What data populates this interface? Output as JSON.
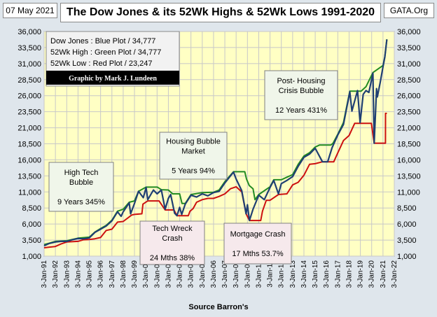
{
  "header": {
    "date": "07 May 2021",
    "title": "The Dow Jones & its 52Wk Highs & 52Wk Lows 1991-2020",
    "site": "GATA.Org"
  },
  "legend": {
    "lines": [
      "Dow Jones : Blue Plot  / 34,777",
      "52Wk High : Green Plot  / 34,777",
      "52Wk Low : Red Plot / 23,247"
    ],
    "credit": "Graphic by Mark J. Lundeen"
  },
  "annotations": [
    {
      "lines": [
        "High Tech",
        "Bubble",
        "",
        "9 Years  345%"
      ],
      "fill": "#f0f6ea"
    },
    {
      "lines": [
        "Tech Wreck",
        "Crash",
        "",
        "24 Mths  38%"
      ],
      "fill": "#f6e9ec"
    },
    {
      "lines": [
        "Housing Bubble",
        "Market",
        "",
        "5 Years  94%"
      ],
      "fill": "#f0f6ea"
    },
    {
      "lines": [
        "Mortgage Crash",
        "",
        "17 Mths  53.7%"
      ],
      "fill": "#f6e9ec"
    },
    {
      "lines": [
        "Post- Housing",
        "Crisis Bubble",
        "",
        "12 Years  431%"
      ],
      "fill": "#f0f6ea"
    }
  ],
  "source": "Source Barron's",
  "colors": {
    "plot_bg": "#ffffc4",
    "grid": "#c8c8c8",
    "dow": "#1f3f73",
    "high": "#228b22",
    "low": "#cc1010"
  },
  "chart_data": {
    "type": "line",
    "title": "The Dow Jones & its 52Wk Highs & 52Wk Lows 1991-2020",
    "xlabel": "Source Barron's",
    "ylabel": "",
    "ylim": [
      1000,
      36000
    ],
    "xlim": [
      "1991-01-03",
      "2022-01-03"
    ],
    "yticks": [
      1000,
      3500,
      6000,
      8500,
      11000,
      13500,
      16000,
      18500,
      21000,
      23500,
      26000,
      28500,
      31000,
      33500,
      36000
    ],
    "ytick_labels": [
      "1,000",
      "3,500",
      "6,000",
      "8,500",
      "11,000",
      "13,500",
      "16,000",
      "18,500",
      "21,000",
      "23,500",
      "26,000",
      "28,500",
      "31,000",
      "33,500",
      "36,000"
    ],
    "xtick_labels": [
      "3-Jan-91",
      "3-Jan-92",
      "3-Jan-93",
      "3-Jan-94",
      "3-Jan-95",
      "3-Jan-96",
      "3-Jan-97",
      "3-Jan-98",
      "3-Jan-99",
      "3-Jan-00",
      "3-Jan-01",
      "3-Jan-02",
      "3-Jan-03",
      "3-Jan-04",
      "3-Jan-05",
      "3-Jan-06",
      "3-Jan-07",
      "3-Jan-08",
      "3-Jan-09",
      "3-Jan-10",
      "3-Jan-11",
      "3-Jan-12",
      "3-Jan-13",
      "3-Jan-14",
      "3-Jan-15",
      "3-Jan-16",
      "3-Jan-17",
      "3-Jan-18",
      "3-Jan-19",
      "3-Jan-20",
      "3-Jan-21",
      "3-Jan-22"
    ],
    "grid": true,
    "legend": "top-left",
    "series": [
      {
        "name": "Dow Jones",
        "color": "#1f3f73",
        "points": [
          [
            "1991-01-03",
            2600
          ],
          [
            "1991-06-03",
            2950
          ],
          [
            "1992-01-03",
            3200
          ],
          [
            "1992-07-03",
            3300
          ],
          [
            "1993-01-03",
            3300
          ],
          [
            "1993-07-03",
            3550
          ],
          [
            "1994-01-03",
            3750
          ],
          [
            "1994-07-03",
            3700
          ],
          [
            "1995-01-03",
            3850
          ],
          [
            "1995-07-03",
            4700
          ],
          [
            "1996-01-03",
            5200
          ],
          [
            "1996-07-03",
            5700
          ],
          [
            "1997-01-03",
            6500
          ],
          [
            "1997-07-03",
            7900
          ],
          [
            "1997-10-27",
            7200
          ],
          [
            "1998-01-03",
            7900
          ],
          [
            "1998-07-17",
            9300
          ],
          [
            "1998-08-31",
            7600
          ],
          [
            "1999-01-03",
            9200
          ],
          [
            "1999-05-13",
            11100
          ],
          [
            "1999-10-15",
            10100
          ],
          [
            "2000-01-14",
            11700
          ],
          [
            "2000-03-07",
            9800
          ],
          [
            "2000-09-06",
            11300
          ],
          [
            "2001-01-03",
            10700
          ],
          [
            "2001-05-21",
            11300
          ],
          [
            "2001-09-21",
            8300
          ],
          [
            "2002-01-03",
            10000
          ],
          [
            "2002-03-19",
            10600
          ],
          [
            "2002-07-23",
            7700
          ],
          [
            "2002-10-09",
            7300
          ],
          [
            "2003-01-03",
            8600
          ],
          [
            "2003-03-11",
            7500
          ],
          [
            "2003-07-03",
            9100
          ],
          [
            "2004-01-03",
            10500
          ],
          [
            "2004-07-03",
            10200
          ],
          [
            "2005-01-03",
            10700
          ],
          [
            "2005-07-03",
            10400
          ],
          [
            "2006-01-03",
            10900
          ],
          [
            "2006-07-03",
            11100
          ],
          [
            "2007-01-03",
            12400
          ],
          [
            "2007-10-09",
            14100
          ],
          [
            "2008-01-03",
            13000
          ],
          [
            "2008-07-03",
            11200
          ],
          [
            "2008-11-20",
            7600
          ],
          [
            "2009-01-03",
            9000
          ],
          [
            "2009-03-09",
            6550
          ],
          [
            "2009-07-03",
            8300
          ],
          [
            "2010-01-03",
            10500
          ],
          [
            "2010-07-03",
            9800
          ],
          [
            "2011-01-03",
            11700
          ],
          [
            "2011-05-03",
            12800
          ],
          [
            "2011-10-03",
            10700
          ],
          [
            "2012-01-03",
            12300
          ],
          [
            "2012-07-03",
            12800
          ],
          [
            "2013-01-03",
            13400
          ],
          [
            "2013-07-03",
            15000
          ],
          [
            "2014-01-03",
            16400
          ],
          [
            "2014-07-03",
            16900
          ],
          [
            "2015-01-03",
            17800
          ],
          [
            "2015-08-25",
            15700
          ],
          [
            "2016-02-11",
            15700
          ],
          [
            "2016-07-03",
            17900
          ],
          [
            "2017-01-03",
            19900
          ],
          [
            "2017-07-03",
            21500
          ],
          [
            "2018-01-26",
            26600
          ],
          [
            "2018-04-03",
            23600
          ],
          [
            "2018-10-03",
            26800
          ],
          [
            "2018-12-24",
            21800
          ],
          [
            "2019-04-03",
            26200
          ],
          [
            "2019-07-03",
            26800
          ],
          [
            "2019-10-03",
            26500
          ],
          [
            "2020-02-12",
            29500
          ],
          [
            "2020-03-23",
            18600
          ],
          [
            "2020-06-08",
            27100
          ],
          [
            "2020-07-03",
            25800
          ],
          [
            "2020-10-03",
            28000
          ],
          [
            "2021-01-03",
            30500
          ],
          [
            "2021-03-03",
            32000
          ],
          [
            "2021-05-07",
            34777
          ]
        ]
      },
      {
        "name": "52Wk High",
        "color": "#228b22",
        "points": [
          [
            "1991-01-03",
            2800
          ],
          [
            "1991-06-03",
            3000
          ],
          [
            "1992-01-03",
            3300
          ],
          [
            "1993-01-03",
            3400
          ],
          [
            "1993-07-03",
            3600
          ],
          [
            "1994-01-03",
            3800
          ],
          [
            "1995-01-03",
            3950
          ],
          [
            "1995-07-03",
            4750
          ],
          [
            "1996-01-03",
            5300
          ],
          [
            "1996-07-03",
            5800
          ],
          [
            "1997-01-03",
            6600
          ],
          [
            "1997-07-03",
            8000
          ],
          [
            "1998-01-03",
            8300
          ],
          [
            "1998-07-17",
            9400
          ],
          [
            "1999-01-03",
            9600
          ],
          [
            "1999-05-13",
            11100
          ],
          [
            "2000-01-14",
            11750
          ],
          [
            "2001-01-14",
            11750
          ],
          [
            "2001-05-21",
            11350
          ],
          [
            "2002-01-03",
            11300
          ],
          [
            "2002-05-21",
            10700
          ],
          [
            "2003-01-03",
            10700
          ],
          [
            "2003-03-19",
            9200
          ],
          [
            "2003-07-03",
            9200
          ],
          [
            "2004-01-03",
            10600
          ],
          [
            "2004-07-03",
            10750
          ],
          [
            "2005-01-03",
            10900
          ],
          [
            "2006-01-03",
            10950
          ],
          [
            "2006-07-03",
            11300
          ],
          [
            "2007-01-03",
            12600
          ],
          [
            "2007-10-09",
            14150
          ],
          [
            "2008-10-09",
            14150
          ],
          [
            "2008-12-03",
            13000
          ],
          [
            "2009-03-03",
            12000
          ],
          [
            "2009-07-03",
            11500
          ],
          [
            "2009-09-03",
            9800
          ],
          [
            "2010-01-03",
            10600
          ],
          [
            "2011-01-03",
            11800
          ],
          [
            "2011-05-03",
            12900
          ],
          [
            "2012-01-03",
            12900
          ],
          [
            "2012-07-03",
            13300
          ],
          [
            "2013-01-03",
            13700
          ],
          [
            "2013-07-03",
            15300
          ],
          [
            "2014-01-03",
            16600
          ],
          [
            "2014-07-03",
            17100
          ],
          [
            "2015-01-03",
            18000
          ],
          [
            "2015-05-19",
            18300
          ],
          [
            "2016-05-19",
            18300
          ],
          [
            "2016-08-03",
            18600
          ],
          [
            "2017-01-03",
            20000
          ],
          [
            "2017-07-03",
            21800
          ],
          [
            "2018-01-26",
            26700
          ],
          [
            "2019-01-26",
            26700
          ],
          [
            "2019-07-03",
            27400
          ],
          [
            "2020-02-12",
            29600
          ],
          [
            "2021-01-03",
            30700
          ],
          [
            "2021-03-03",
            32100
          ],
          [
            "2021-05-07",
            34777
          ]
        ]
      },
      {
        "name": "52Wk Low",
        "color": "#cc1010",
        "points": [
          [
            "1991-01-03",
            2300
          ],
          [
            "1991-06-03",
            2400
          ],
          [
            "1992-01-03",
            2500
          ],
          [
            "1992-07-03",
            2900
          ],
          [
            "1993-01-03",
            3200
          ],
          [
            "1994-01-03",
            3300
          ],
          [
            "1994-07-03",
            3550
          ],
          [
            "1995-01-03",
            3600
          ],
          [
            "1995-07-03",
            3700
          ],
          [
            "1996-01-03",
            3900
          ],
          [
            "1996-07-03",
            5000
          ],
          [
            "1997-01-03",
            5200
          ],
          [
            "1997-07-03",
            6300
          ],
          [
            "1998-01-03",
            6400
          ],
          [
            "1998-10-03",
            7400
          ],
          [
            "1999-01-03",
            7500
          ],
          [
            "1999-08-31",
            7600
          ],
          [
            "1999-10-03",
            9100
          ],
          [
            "2000-03-07",
            9600
          ],
          [
            "2001-03-07",
            9600
          ],
          [
            "2001-09-21",
            8200
          ],
          [
            "2002-07-03",
            8200
          ],
          [
            "2002-10-09",
            7300
          ],
          [
            "2003-10-09",
            7300
          ],
          [
            "2003-12-03",
            8000
          ],
          [
            "2004-03-11",
            8400
          ],
          [
            "2004-07-03",
            9400
          ],
          [
            "2005-01-03",
            9800
          ],
          [
            "2005-07-03",
            10000
          ],
          [
            "2006-01-03",
            10000
          ],
          [
            "2006-07-03",
            10300
          ],
          [
            "2007-01-03",
            10700
          ],
          [
            "2007-07-03",
            11500
          ],
          [
            "2008-01-03",
            11800
          ],
          [
            "2008-07-03",
            11000
          ],
          [
            "2008-11-20",
            7600
          ],
          [
            "2009-03-09",
            6550
          ],
          [
            "2010-03-09",
            6550
          ],
          [
            "2010-05-03",
            8000
          ],
          [
            "2010-09-03",
            9700
          ],
          [
            "2011-01-03",
            9700
          ],
          [
            "2011-10-03",
            10600
          ],
          [
            "2012-07-03",
            10700
          ],
          [
            "2013-01-03",
            12100
          ],
          [
            "2013-07-03",
            12500
          ],
          [
            "2014-01-03",
            13600
          ],
          [
            "2014-07-03",
            15300
          ],
          [
            "2015-01-03",
            15400
          ],
          [
            "2015-08-25",
            15700
          ],
          [
            "2016-08-25",
            15700
          ],
          [
            "2017-01-03",
            17100
          ],
          [
            "2017-07-03",
            19000
          ],
          [
            "2018-01-03",
            19800
          ],
          [
            "2018-07-03",
            21700
          ],
          [
            "2018-12-24",
            21700
          ],
          [
            "2019-12-24",
            21700
          ],
          [
            "2020-03-23",
            18600
          ],
          [
            "2021-03-23",
            18600
          ],
          [
            "2021-03-26",
            23247
          ],
          [
            "2021-05-07",
            23247
          ]
        ]
      }
    ]
  }
}
